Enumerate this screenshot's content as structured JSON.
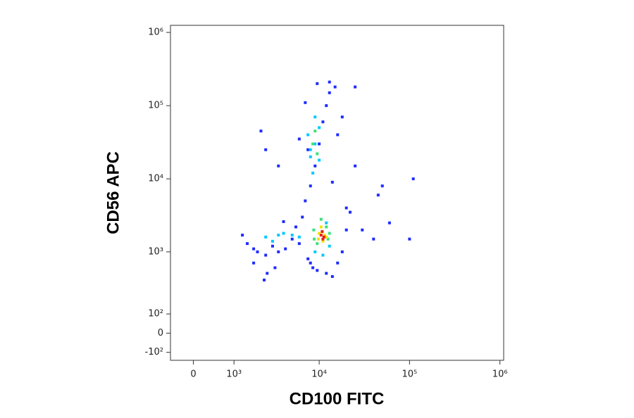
{
  "chart_data": {
    "type": "scatter",
    "x_label": "CD100 FITC",
    "y_label": "CD56 APC",
    "xscale": "biexponential",
    "yscale": "biexponential",
    "xlim": [
      -500,
      1100000
    ],
    "ylim": [
      -150,
      1250000
    ],
    "xticks": [
      0,
      {
        "value": 1000,
        "label": "10³"
      },
      {
        "value": 10000,
        "label": "10⁴"
      },
      {
        "value": 100000,
        "label": "10⁵"
      },
      {
        "value": 1000000,
        "label": "10⁶"
      }
    ],
    "yticks": [
      {
        "value": -100,
        "label": "-10²"
      },
      0,
      {
        "value": 100,
        "label": "10²"
      },
      {
        "value": 1000,
        "label": "10³"
      },
      {
        "value": 10000,
        "label": "10⁴"
      },
      {
        "value": 100000,
        "label": "10⁵"
      },
      {
        "value": 1000000,
        "label": "10⁶"
      }
    ],
    "series": [
      {
        "color": "#1e2cff",
        "x": [
          1300,
          1500,
          1800,
          2000,
          2500,
          3000,
          3500,
          4200,
          5000,
          6000,
          7500,
          8000,
          8500,
          9500,
          12000,
          14000,
          16000,
          18000,
          20000,
          6500,
          7000,
          8000,
          9000,
          10000,
          11000,
          12000,
          13000,
          2200,
          2500,
          3500,
          7000,
          9500,
          13000,
          15000,
          1800,
          2600,
          3200,
          2400,
          4000,
          5500,
          30000,
          40000,
          50000,
          60000,
          100000,
          110000,
          45000,
          25000,
          16000,
          18000,
          20000,
          14000,
          7500,
          6000,
          22000,
          25000
        ],
        "y": [
          1700,
          1300,
          1100,
          1000,
          900,
          1200,
          1000,
          1100,
          1500,
          1300,
          800,
          700,
          600,
          550,
          500,
          450,
          700,
          1000,
          2000,
          3000,
          5000,
          8000,
          15000,
          30000,
          60000,
          100000,
          150000,
          45000,
          25000,
          15000,
          110000,
          200000,
          210000,
          180000,
          700,
          500,
          600,
          400,
          2600,
          2200,
          2000,
          1500,
          8000,
          2500,
          1500,
          10000,
          6000,
          15000,
          40000,
          70000,
          4000,
          9000,
          25000,
          35000,
          3500,
          180000
        ]
      },
      {
        "color": "#00c8ff",
        "x": [
          2500,
          3000,
          4000,
          5000,
          6000,
          8000,
          9000,
          8500,
          10000,
          9000,
          7500,
          12000,
          13000,
          9000,
          11000,
          8000,
          10000,
          3500
        ],
        "y": [
          1600,
          1400,
          1800,
          1700,
          1600,
          20000,
          30000,
          12000,
          50000,
          70000,
          40000,
          2500,
          1200,
          1000,
          900,
          25000,
          18000,
          1700
        ]
      },
      {
        "color": "#3ee07a",
        "x": [
          8500,
          9000,
          9500,
          8700,
          9500,
          12500,
          12000,
          8800,
          10500,
          13000
        ],
        "y": [
          30000,
          45000,
          22000,
          2000,
          1300,
          1500,
          2200,
          1500,
          2800,
          1800
        ]
      },
      {
        "color": "#f2e200",
        "x": [
          10000,
          11000,
          10500,
          11500,
          9800,
          12000
        ],
        "y": [
          1800,
          1400,
          2200,
          1700,
          1500,
          1600
        ]
      },
      {
        "color": "#e82010",
        "x": [
          10500,
          11000,
          10800,
          11300
        ],
        "y": [
          1700,
          1500,
          1900,
          1600
        ]
      }
    ]
  }
}
